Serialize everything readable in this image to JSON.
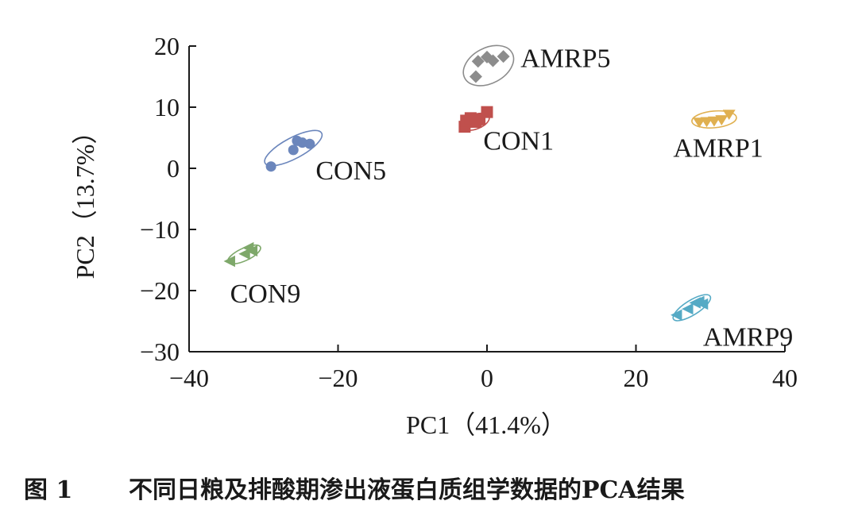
{
  "chart_data": {
    "type": "scatter",
    "xlabel": "PC1（41.4%）",
    "ylabel": "PC2（13.7%）",
    "xlim": [
      -40,
      40
    ],
    "ylim": [
      -30,
      20
    ],
    "x_ticks": [
      -40,
      -20,
      0,
      20,
      40
    ],
    "y_ticks": [
      20,
      10,
      0,
      -10,
      -20,
      -30
    ],
    "x_tick_labels": [
      "−40",
      "−20",
      "0",
      "20",
      "40"
    ],
    "y_tick_labels": [
      "20",
      "10",
      "0",
      "−10",
      "−20",
      "−30"
    ],
    "grid": false,
    "series": [
      {
        "name": "AMRP5",
        "marker": "diamond",
        "color": "#8c8c8c",
        "points": [
          [
            -1.5,
            15.0
          ],
          [
            -1.2,
            17.5
          ],
          [
            0.0,
            18.2
          ],
          [
            0.8,
            17.6
          ],
          [
            2.2,
            18.3
          ]
        ],
        "ellipse": {
          "cx": 0.2,
          "cy": 16.8,
          "rx": 3.6,
          "ry": 1.7,
          "angle": 28
        }
      },
      {
        "name": "CON1",
        "marker": "square",
        "color": "#c0504d",
        "points": [
          [
            -3.0,
            6.8
          ],
          [
            -2.8,
            7.8
          ],
          [
            -2.2,
            8.2
          ],
          [
            -1.5,
            7.6
          ],
          [
            -1.0,
            8.0
          ],
          [
            0.0,
            9.2
          ]
        ],
        "ellipse": {
          "cx": -1.6,
          "cy": 7.6,
          "rx": 2.0,
          "ry": 0.7,
          "angle": 20
        }
      },
      {
        "name": "AMRP1",
        "marker": "triangle-down",
        "color": "#e0b050",
        "points": [
          [
            28.5,
            7.5
          ],
          [
            29.5,
            7.6
          ],
          [
            30.5,
            7.7
          ],
          [
            31.5,
            7.9
          ],
          [
            32.5,
            8.8
          ]
        ],
        "ellipse": {
          "cx": 30.5,
          "cy": 8.0,
          "rx": 3.0,
          "ry": 0.8,
          "angle": 5
        }
      },
      {
        "name": "CON5",
        "marker": "circle",
        "color": "#6b86bc",
        "points": [
          [
            -29.0,
            0.3
          ],
          [
            -26.0,
            3.0
          ],
          [
            -25.5,
            4.5
          ],
          [
            -24.8,
            4.2
          ],
          [
            -23.8,
            4.0
          ]
        ],
        "ellipse": {
          "cx": -26.0,
          "cy": 3.3,
          "rx": 4.3,
          "ry": 1.0,
          "angle": 28
        }
      },
      {
        "name": "CON9",
        "marker": "triangle-left",
        "color": "#7ea86a",
        "points": [
          [
            -34.5,
            -15.2
          ],
          [
            -32.5,
            -14.0
          ],
          [
            -32.0,
            -13.0
          ],
          [
            -31.5,
            -13.5
          ]
        ],
        "ellipse": {
          "cx": -32.6,
          "cy": -14.1,
          "rx": 2.4,
          "ry": 0.6,
          "angle": 25
        }
      },
      {
        "name": "AMRP9",
        "marker": "triangle-left",
        "color": "#55aac5",
        "points": [
          [
            25.5,
            -24.0
          ],
          [
            27.0,
            -23.0
          ],
          [
            28.0,
            -22.0
          ],
          [
            28.5,
            -21.8
          ],
          [
            29.0,
            -22.2
          ]
        ],
        "ellipse": {
          "cx": 27.5,
          "cy": -22.8,
          "rx": 2.9,
          "ry": 0.7,
          "angle": 32
        }
      }
    ],
    "labels": [
      {
        "text": "AMRP5",
        "x": 4.5,
        "y": 18.0
      },
      {
        "text": "CON1",
        "x": -0.5,
        "y": 4.5
      },
      {
        "text": "AMRP1",
        "x": 25.0,
        "y": 3.3
      },
      {
        "text": "CON5",
        "x": -23.0,
        "y": -0.4
      },
      {
        "text": "CON9",
        "x": -34.5,
        "y": -20.5
      },
      {
        "text": "AMRP9",
        "x": 29.0,
        "y": -27.6
      }
    ]
  },
  "caption": {
    "number": "图 1",
    "text": "不同日粮及排酸期渗出液蛋白质组学数据的PCA结果"
  }
}
